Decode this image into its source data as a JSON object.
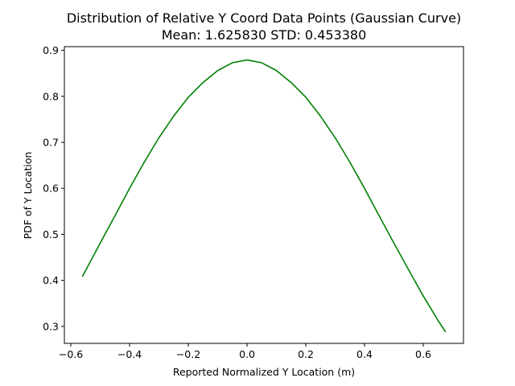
{
  "chart_data": {
    "type": "line",
    "title": "Distribution of Relative Y Coord Data Points (Gaussian Curve)",
    "subtitle": "Mean: 1.625830 STD: 0.453380",
    "xlabel": "Reported Normalized Y Location (m)",
    "ylabel": "PDF of Y Location",
    "xlim": [
      -0.622,
      0.737
    ],
    "ylim": [
      0.263,
      0.908
    ],
    "x_ticks": [
      -0.6,
      -0.4,
      -0.2,
      0.0,
      0.2,
      0.4,
      0.6
    ],
    "x_tick_labels": [
      "−0.6",
      "−0.4",
      "−0.2",
      "0.0",
      "0.2",
      "0.4",
      "0.6"
    ],
    "y_ticks": [
      0.3,
      0.4,
      0.5,
      0.6,
      0.7,
      0.8,
      0.9
    ],
    "y_tick_labels": [
      "0.3",
      "0.4",
      "0.5",
      "0.6",
      "0.7",
      "0.8",
      "0.9"
    ],
    "grid": false,
    "series": [
      {
        "color": "#008000",
        "x": [
          -0.56,
          -0.5,
          -0.45,
          -0.4,
          -0.35,
          -0.3,
          -0.25,
          -0.2,
          -0.15,
          -0.1,
          -0.05,
          0.0,
          0.05,
          0.1,
          0.15,
          0.2,
          0.25,
          0.3,
          0.35,
          0.4,
          0.45,
          0.5,
          0.55,
          0.6,
          0.65,
          0.675
        ],
        "y": [
          0.409,
          0.481,
          0.54,
          0.6,
          0.657,
          0.71,
          0.757,
          0.798,
          0.83,
          0.856,
          0.873,
          0.879,
          0.873,
          0.856,
          0.83,
          0.798,
          0.757,
          0.71,
          0.657,
          0.6,
          0.54,
          0.481,
          0.423,
          0.366,
          0.313,
          0.289
        ]
      }
    ]
  }
}
